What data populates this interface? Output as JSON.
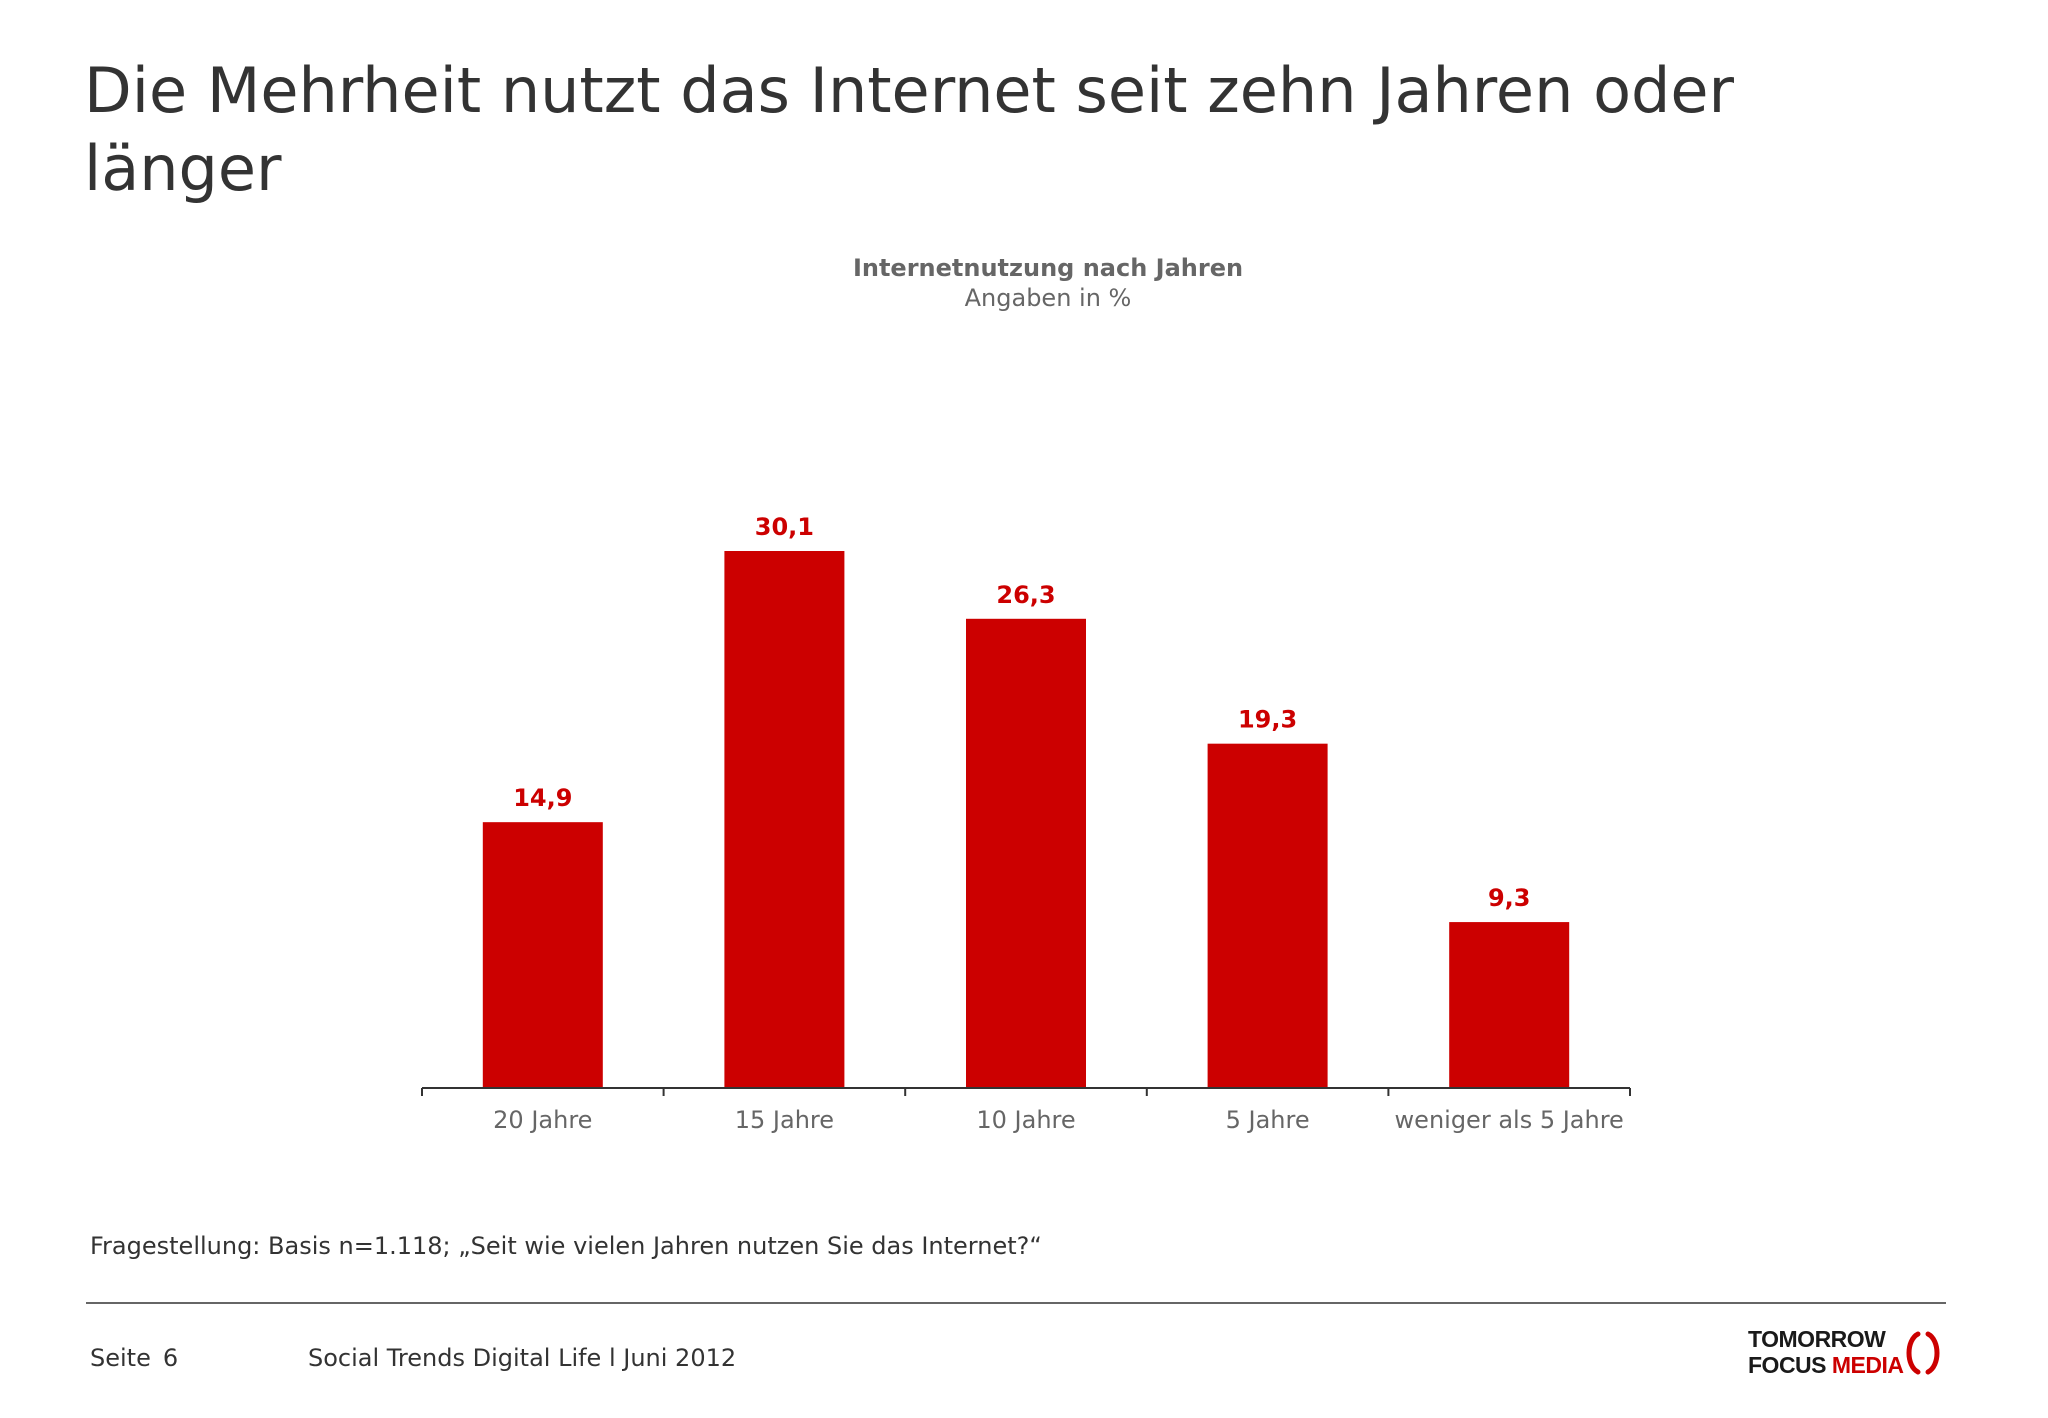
{
  "headline": "Die Mehrheit nutzt das Internet seit zehn Jahren oder länger",
  "chart_data": {
    "type": "bar",
    "title": "Internetnutzung nach Jahren",
    "subtitle": "Angaben in %",
    "categories": [
      "20 Jahre",
      "15 Jahre",
      "10 Jahre",
      "5 Jahre",
      "weniger als 5 Jahre"
    ],
    "values": [
      14.9,
      30.1,
      26.3,
      19.3,
      9.3
    ],
    "value_labels": [
      "14,9",
      "30,1",
      "26,3",
      "19,3",
      "9,3"
    ],
    "xlabel": "",
    "ylabel": "",
    "ylim": [
      0,
      30.1
    ],
    "grid": false,
    "legend": "none",
    "bar_color": "#cc0000",
    "label_color": "#cc0000"
  },
  "question": "Fragestellung: Basis n=1.118; „Seit wie vielen Jahren nutzen Sie das Internet?“",
  "footer": {
    "page_label": "Seite",
    "page_number": "6",
    "title": "Social Trends Digital Life l Juni 2012"
  },
  "logo": {
    "line1": "TOMORROW",
    "line2_a": "FOCUS",
    "line2_b": "MEDIA",
    "accent_color": "#cc0000"
  }
}
